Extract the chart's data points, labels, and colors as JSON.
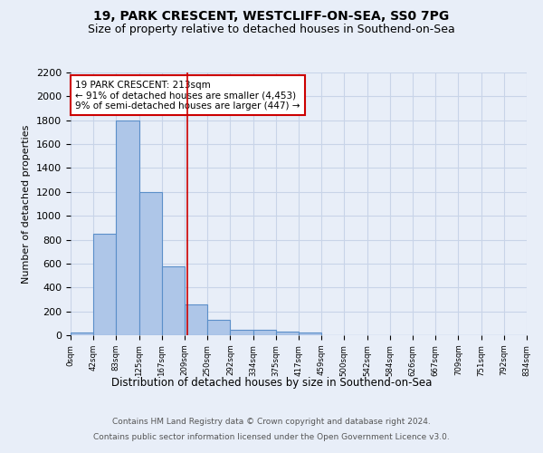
{
  "title1": "19, PARK CRESCENT, WESTCLIFF-ON-SEA, SS0 7PG",
  "title2": "Size of property relative to detached houses in Southend-on-Sea",
  "xlabel": "Distribution of detached houses by size in Southend-on-Sea",
  "ylabel": "Number of detached properties",
  "footer1": "Contains HM Land Registry data © Crown copyright and database right 2024.",
  "footer2": "Contains public sector information licensed under the Open Government Licence v3.0.",
  "annotation_title": "19 PARK CRESCENT: 213sqm",
  "annotation_line1": "← 91% of detached houses are smaller (4,453)",
  "annotation_line2": "9% of semi-detached houses are larger (447) →",
  "bar_color": "#aec6e8",
  "bar_edge_color": "#5b8fc9",
  "grid_color": "#c8d4e8",
  "vline_color": "#cc0000",
  "vline_x": 213,
  "bin_edges": [
    0,
    42,
    83,
    125,
    167,
    209,
    250,
    292,
    334,
    375,
    417,
    459,
    500,
    542,
    584,
    626,
    667,
    709,
    751,
    792,
    834
  ],
  "bar_heights": [
    25,
    850,
    1800,
    1200,
    580,
    255,
    130,
    45,
    45,
    30,
    20,
    0,
    0,
    0,
    0,
    0,
    0,
    0,
    0,
    0
  ],
  "ylim": [
    0,
    2200
  ],
  "yticks": [
    0,
    200,
    400,
    600,
    800,
    1000,
    1200,
    1400,
    1600,
    1800,
    2000,
    2200
  ],
  "bg_color": "#e8eef8",
  "plot_bg_color": "#e8eef8",
  "annotation_box_color": "#ffffff",
  "annotation_box_edge": "#cc0000",
  "title_fontsize": 10,
  "subtitle_fontsize": 9
}
